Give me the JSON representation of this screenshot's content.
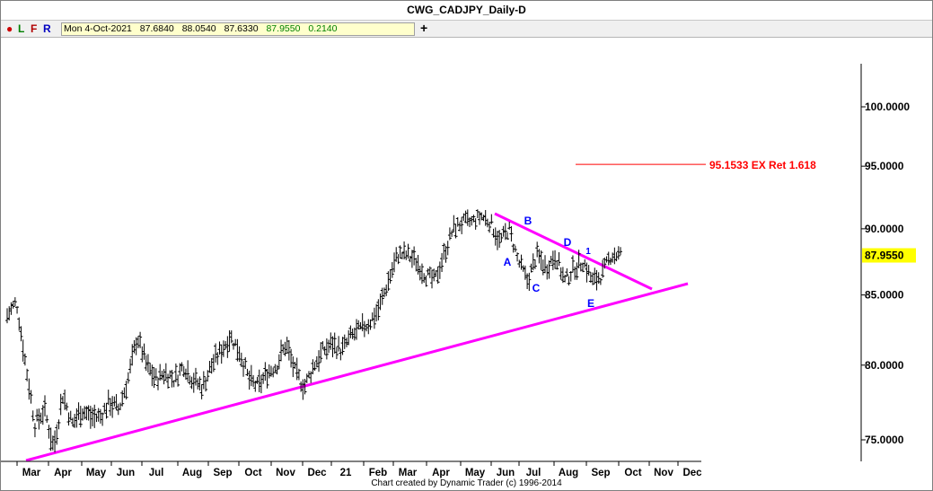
{
  "window": {
    "title": "CWG_CADJPY_Daily-D"
  },
  "toolbar": {
    "buttons": [
      {
        "label": "●",
        "color": "#cc0000"
      },
      {
        "label": "L",
        "color": "#008000"
      },
      {
        "label": "F",
        "color": "#b00000"
      },
      {
        "label": "R",
        "color": "#0000c0"
      }
    ],
    "ohlc": {
      "date": "Mon 4-Oct-2021",
      "open": "87.6840",
      "high": "88.0540",
      "low": "87.6330",
      "close": "87.9550",
      "change": "0.2140"
    },
    "add_label": "+"
  },
  "footer": "Chart created by Dynamic Trader  (c) 1996-2014",
  "chart_data": {
    "type": "candlestick",
    "x_axis": {
      "labels": [
        "Mar",
        "Apr",
        "May",
        "Jun",
        "Jul",
        "Aug",
        "Sep",
        "Oct",
        "Nov",
        "Dec",
        "21",
        "Feb",
        "Mar",
        "Apr",
        "May",
        "Jun",
        "Jul",
        "Aug",
        "Sep",
        "Oct",
        "Nov",
        "Dec"
      ]
    },
    "y_axis": {
      "ticks": [
        "100.0000",
        "95.0000",
        "90.0000",
        "85.0000",
        "80.0000",
        "75.0000"
      ],
      "scale": "log"
    },
    "last_price": "87.9550",
    "target": {
      "value": "95.1533",
      "label": "95.1533 EX Ret 1.618",
      "color": "#ff0000"
    },
    "series_path": [
      [
        0,
        83.5
      ],
      [
        2,
        84.5
      ],
      [
        4,
        80
      ],
      [
        5,
        76
      ],
      [
        7,
        77
      ],
      [
        9,
        74.5
      ],
      [
        11,
        78
      ],
      [
        13,
        76
      ],
      [
        15,
        77
      ],
      [
        17,
        76.5
      ],
      [
        19,
        76.5
      ],
      [
        21,
        77.5
      ],
      [
        23,
        77
      ],
      [
        25,
        79
      ],
      [
        27,
        82
      ],
      [
        29,
        80
      ],
      [
        31,
        79
      ],
      [
        33,
        79.5
      ],
      [
        35,
        79
      ],
      [
        37,
        80
      ],
      [
        39,
        79
      ],
      [
        41,
        78.5
      ],
      [
        43,
        80
      ],
      [
        45,
        81
      ],
      [
        47,
        82
      ],
      [
        49,
        81
      ],
      [
        51,
        79
      ],
      [
        53,
        78.5
      ],
      [
        55,
        79.5
      ],
      [
        57,
        80
      ],
      [
        59,
        81.5
      ],
      [
        61,
        79.5
      ],
      [
        63,
        78.5
      ],
      [
        65,
        80
      ],
      [
        67,
        81
      ],
      [
        69,
        81.5
      ],
      [
        71,
        81
      ],
      [
        73,
        82
      ],
      [
        75,
        82.5
      ],
      [
        77,
        83
      ],
      [
        79,
        84
      ],
      [
        81,
        86
      ],
      [
        83,
        88
      ],
      [
        85,
        88
      ],
      [
        87,
        87.5
      ],
      [
        89,
        86.5
      ],
      [
        91,
        86
      ],
      [
        93,
        88
      ],
      [
        95,
        90
      ],
      [
        97,
        90.5
      ],
      [
        99,
        90.5
      ],
      [
        101,
        91
      ],
      [
        103,
        90.5
      ],
      [
        105,
        89
      ],
      [
        107,
        90
      ],
      [
        109,
        87.5
      ],
      [
        111,
        86
      ],
      [
        113,
        88
      ],
      [
        115,
        87
      ],
      [
        117,
        88
      ],
      [
        119,
        86
      ],
      [
        121,
        87
      ],
      [
        123,
        87.5
      ],
      [
        125,
        86
      ],
      [
        127,
        86.5
      ],
      [
        129,
        88
      ],
      [
        131,
        88
      ]
    ],
    "trendlines": [
      {
        "from": [
          0,
          74
        ],
        "to": [
          140,
          86
        ],
        "color": "#ff00ff"
      },
      {
        "from": [
          101,
          91.3
        ],
        "to": [
          134,
          85.5
        ],
        "color": "#ff00ff"
      }
    ],
    "wave_labels": [
      {
        "text": "A",
        "x": 108,
        "y": 87.6
      },
      {
        "text": "B",
        "x": 109,
        "y": 90.6
      },
      {
        "text": "C",
        "x": 111,
        "y": 85.6
      },
      {
        "text": "D",
        "x": 117,
        "y": 88.8
      },
      {
        "text": "1",
        "x": 121,
        "y": 88.3
      },
      {
        "text": "E",
        "x": 123,
        "y": 84.5
      }
    ]
  }
}
